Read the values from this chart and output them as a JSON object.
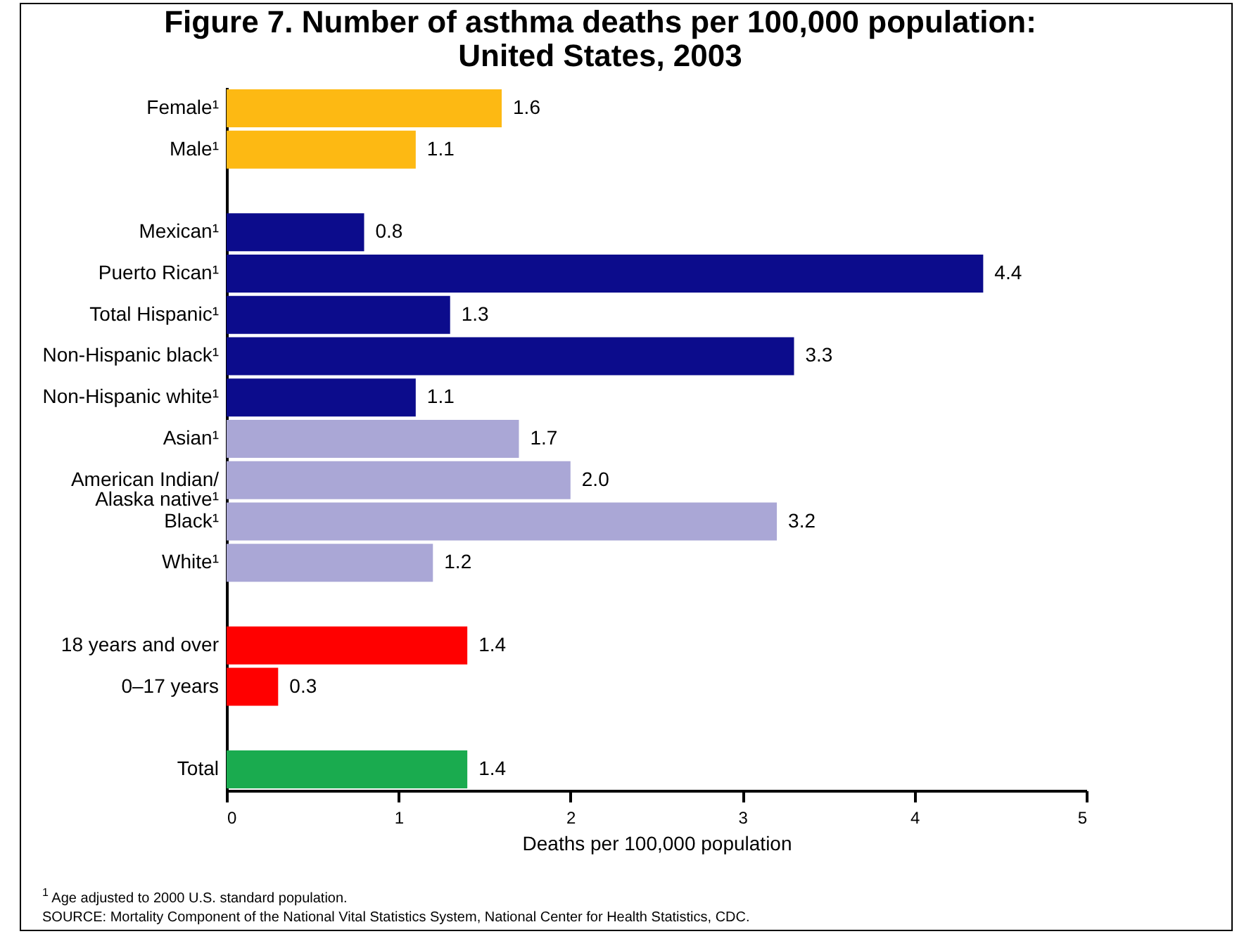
{
  "chart_data": {
    "type": "bar",
    "orientation": "horizontal",
    "title": "Figure 7. Number of asthma deaths per 100,000 population: United States, 2003",
    "xlabel": "Deaths per 100,000 population",
    "categories": [
      "Female¹",
      "Male¹",
      null,
      "Mexican¹",
      "Puerto Rican¹",
      "Total Hispanic¹",
      "Non-Hispanic black¹",
      "Non-Hispanic white¹",
      "Asian¹",
      "American Indian/Alaska native¹",
      "Black¹",
      "White¹",
      null,
      "18 years and over",
      "0–17 years",
      null,
      "Total"
    ],
    "values": [
      1.6,
      1.1,
      null,
      0.8,
      4.4,
      1.3,
      3.3,
      1.1,
      1.7,
      2.0,
      3.2,
      1.2,
      null,
      1.4,
      0.3,
      null,
      1.4
    ],
    "value_labels": [
      "1.6",
      "1.1",
      null,
      "0.8",
      "4.4",
      "1.3",
      "3.3",
      "1.1",
      "1.7",
      "2.0",
      "3.2",
      "1.2",
      null,
      "1.4",
      "0.3",
      null,
      "1.4"
    ],
    "colors": [
      "#fdb913",
      "#fdb913",
      null,
      "#0c0c8c",
      "#0c0c8c",
      "#0c0c8c",
      "#0c0c8c",
      "#0c0c8c",
      "#aaa7d6",
      "#aaa7d6",
      "#aaa7d6",
      "#aaa7d6",
      null,
      "#ff0000",
      "#ff0000",
      null,
      "#1aab4f"
    ],
    "xlim": [
      0,
      5
    ],
    "xticks": [
      0,
      1,
      2,
      3,
      4,
      5
    ],
    "annotations": [
      "$^{1}$ Age adjusted to 2000 U.S. standard population.",
      "SOURCE:  Mortality Component of the National Vital Statistics System, National Center for Health Statistics, CDC."
    ]
  }
}
